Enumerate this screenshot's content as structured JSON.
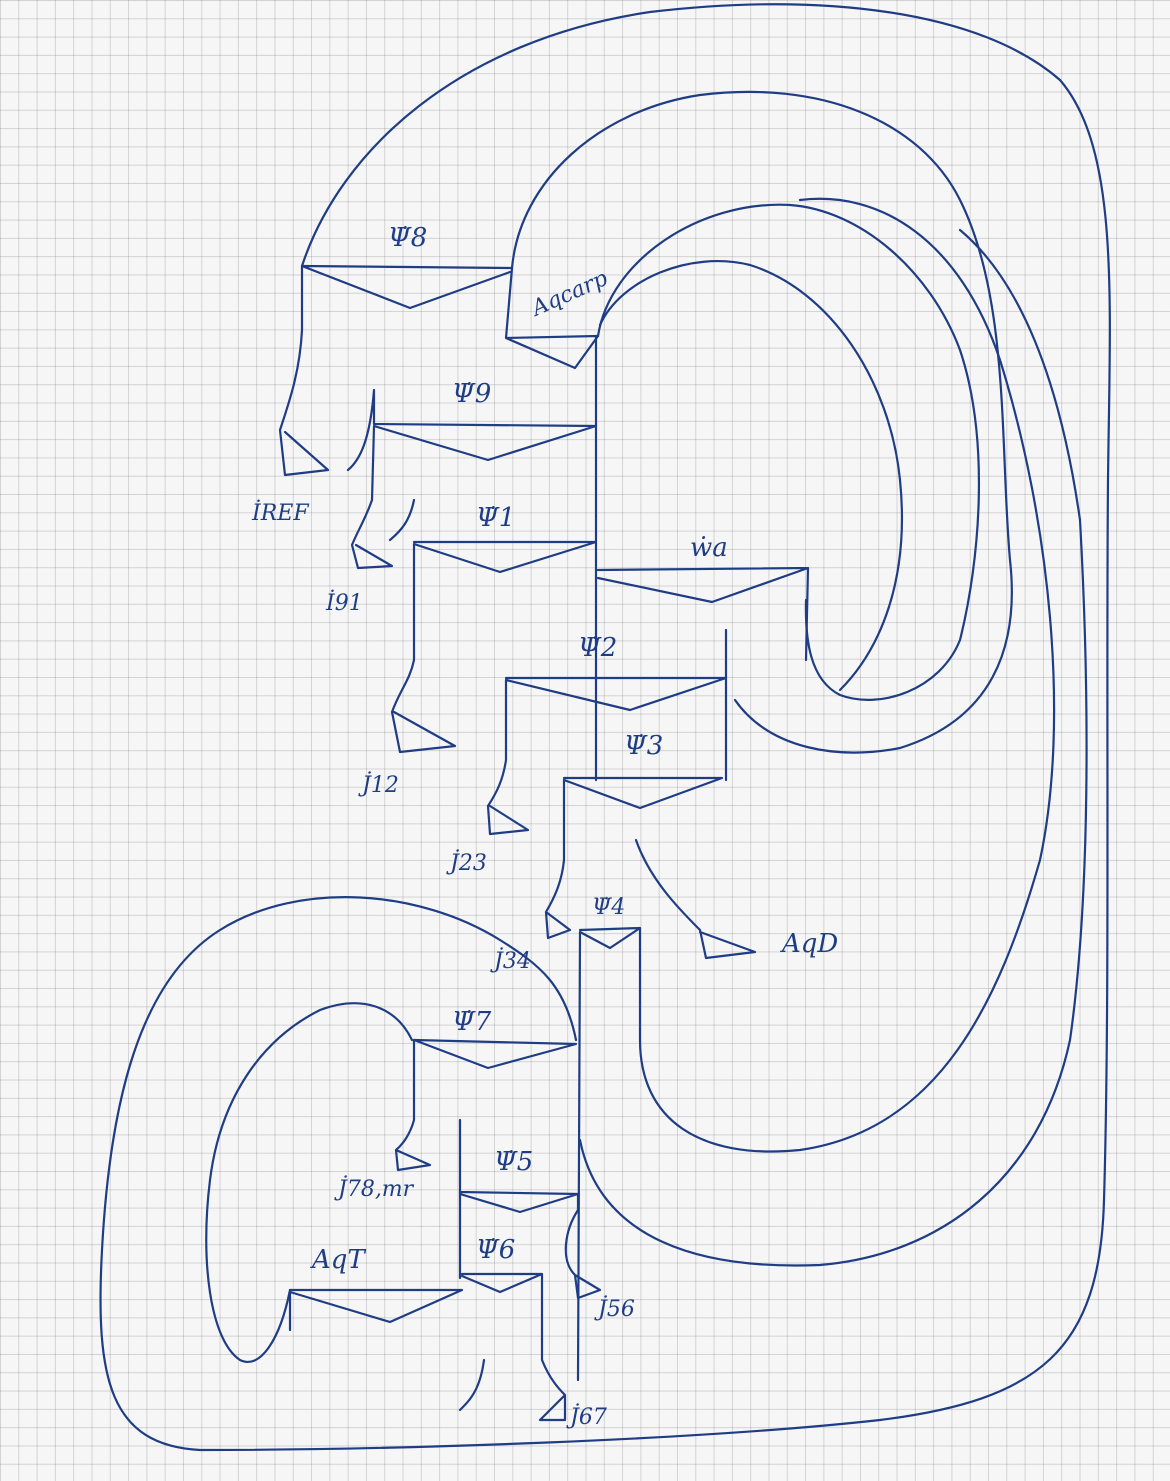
{
  "diagram": {
    "flow_labels": {
      "psi8": "Ψ̇8",
      "psi9": "Ψ̇9",
      "psi1": "Ψ̇1",
      "wa": "ẇa",
      "psi2": "Ψ̇2",
      "psi3": "Ψ̇3",
      "psi4": "Ψ̇4",
      "psi7": "Ψ̇7",
      "psi5": "Ψ̇5",
      "psi6": "Ψ̇6"
    },
    "loss_labels": {
      "iref": "İREF",
      "i91": "İ91",
      "j12": "J̇12",
      "j23": "J̇23",
      "j34": "J̇34",
      "j78mr": "J̇78,mr",
      "j56": "J̇56",
      "j67": "J̇67"
    },
    "heat_labels": {
      "aqcarp": "Aqcarp",
      "aqd": "AqD",
      "aqt": "AqT"
    }
  }
}
